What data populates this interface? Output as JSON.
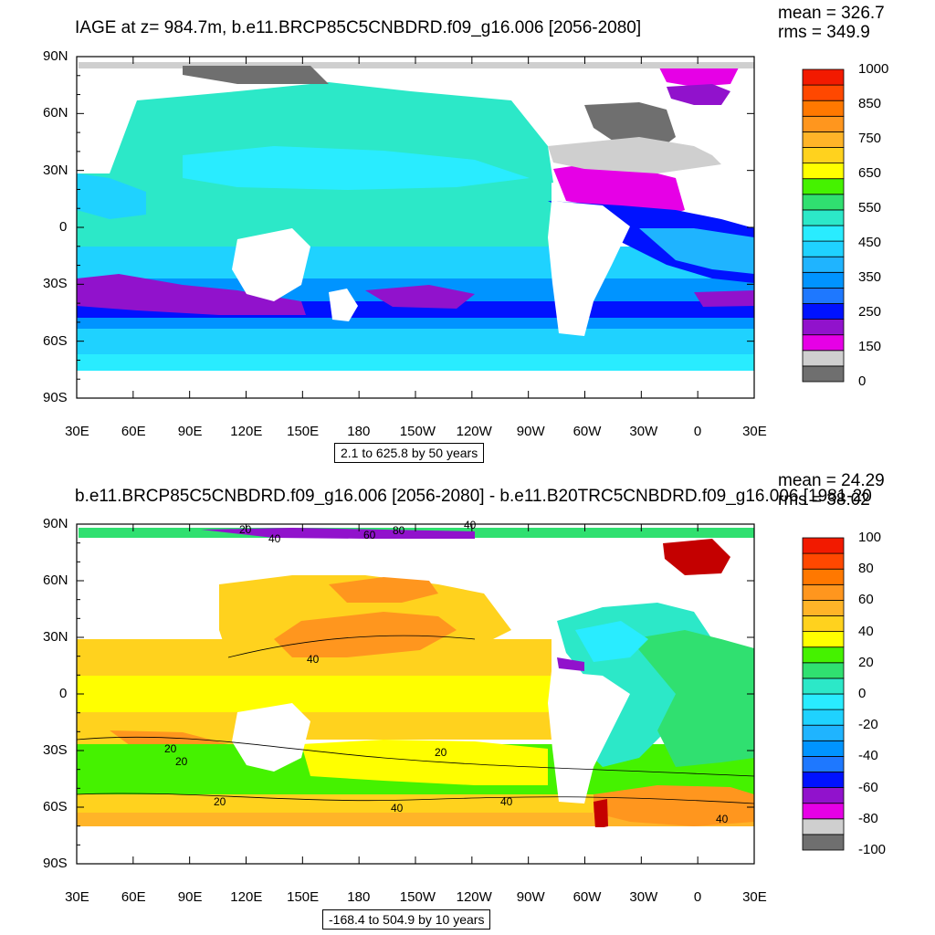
{
  "colors": {
    "bar": [
      "#6f6f6f",
      "#cfcfcf",
      "#e600e6",
      "#9112cc",
      "#0012ff",
      "#1e78ff",
      "#0094ff",
      "#1fb4ff",
      "#1fd2ff",
      "#29ecff",
      "#2ce8c8",
      "#30e070",
      "#45f200",
      "#ffff00",
      "#ffd21e",
      "#ffb428",
      "#ff961e",
      "#ff7800",
      "#ff4800",
      "#f21a00",
      "#c40000"
    ],
    "land": "#ffffff"
  },
  "chart_data": [
    {
      "type": "heatmap",
      "title": "IAGE at z= 984.7m, b.e11.BRCP85C5CNBDRD.f09_g16.006 [2056-2080]",
      "stats": [
        "mean = 326.7",
        "rms = 349.9"
      ],
      "info": "2.1 to 625.8 by 50 years",
      "xticks": [
        "30E",
        "60E",
        "90E",
        "120E",
        "150E",
        "180",
        "150W",
        "120W",
        "90W",
        "60W",
        "30W",
        "0",
        "30E"
      ],
      "yticks": [
        "90N",
        "60N",
        "30N",
        "0",
        "30S",
        "60S",
        "90S"
      ],
      "ylim": [
        -90,
        90
      ],
      "colorbar": {
        "levels": [
          0,
          50,
          100,
          150,
          200,
          250,
          300,
          350,
          400,
          450,
          500,
          550,
          600,
          650,
          700,
          750,
          800,
          850,
          900,
          950,
          1000
        ],
        "labels": [
          "1000",
          "850",
          "750",
          "650",
          "550",
          "450",
          "350",
          "250",
          "150",
          "0"
        ]
      }
    },
    {
      "type": "heatmap",
      "title": "b.e11.BRCP85C5CNBDRD.f09_g16.006 [2056-2080] - b.e11.B20TRC5CNBDRD.f09_g16.006 [1981-20",
      "stats": [
        "mean = 24.29",
        "rms = 38.02"
      ],
      "info": "-168.4 to 504.9 by 10 years",
      "xticks": [
        "30E",
        "60E",
        "90E",
        "120E",
        "150E",
        "180",
        "150W",
        "120W",
        "90W",
        "60W",
        "30W",
        "0",
        "30E"
      ],
      "yticks": [
        "90N",
        "60N",
        "30N",
        "0",
        "30S",
        "60S",
        "90S"
      ],
      "ylim": [
        -90,
        90
      ],
      "contour_labels": [
        "20",
        "40",
        "60",
        "80",
        "40",
        "40",
        "20",
        "40",
        "20",
        "20",
        "40",
        "20",
        "40"
      ],
      "colorbar": {
        "levels": [
          -100,
          -90,
          -80,
          -70,
          -60,
          -50,
          -40,
          -30,
          -20,
          -10,
          0,
          10,
          20,
          30,
          40,
          50,
          60,
          70,
          80,
          90,
          100
        ],
        "labels": [
          "100",
          "80",
          "60",
          "40",
          "20",
          "0",
          "-20",
          "-40",
          "-60",
          "-80",
          "-100"
        ]
      }
    }
  ]
}
